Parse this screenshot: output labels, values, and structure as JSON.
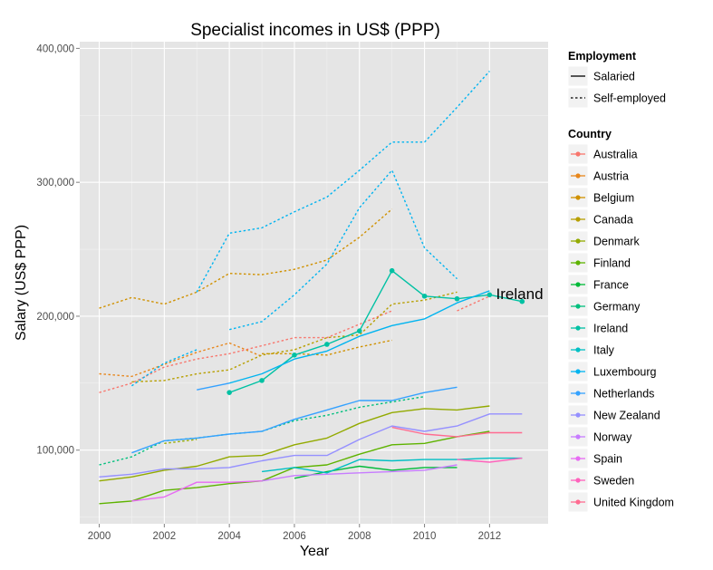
{
  "chart_data": {
    "type": "line",
    "title": "Specialist incomes in US$ (PPP)",
    "xlabel": "Year",
    "ylabel": "Salary (US$ PPP)",
    "xlim": [
      1999.4,
      2013.8
    ],
    "ylim": [
      45000,
      405000
    ],
    "x_ticks": [
      2000,
      2002,
      2004,
      2006,
      2008,
      2010,
      2012
    ],
    "y_ticks": [
      100000,
      200000,
      300000,
      400000
    ],
    "y_tick_labels": [
      "100,000",
      "200,000",
      "300,000",
      "400,000"
    ],
    "grid": true,
    "legend_position": "right",
    "legend": {
      "employment_title": "Employment",
      "employment": [
        {
          "label": "Salaried",
          "dash": "solid"
        },
        {
          "label": "Self-employed",
          "dash": "dotted"
        }
      ],
      "country_title": "Country",
      "countries": [
        {
          "name": "Australia",
          "color": "#F8766D"
        },
        {
          "name": "Austria",
          "color": "#E7861B"
        },
        {
          "name": "Belgium",
          "color": "#D09100"
        },
        {
          "name": "Canada",
          "color": "#B79F00"
        },
        {
          "name": "Denmark",
          "color": "#93AA00"
        },
        {
          "name": "Finland",
          "color": "#5EB300"
        },
        {
          "name": "France",
          "color": "#00BA38"
        },
        {
          "name": "Germany",
          "color": "#00BF7D"
        },
        {
          "name": "Ireland",
          "color": "#00C1A3"
        },
        {
          "name": "Italy",
          "color": "#00BFC4"
        },
        {
          "name": "Luxembourg",
          "color": "#00B4F0"
        },
        {
          "name": "Netherlands",
          "color": "#35A2FF"
        },
        {
          "name": "New Zealand",
          "color": "#9590FF"
        },
        {
          "name": "Norway",
          "color": "#C77CFF"
        },
        {
          "name": "Spain",
          "color": "#E76BF3"
        },
        {
          "name": "Sweden",
          "color": "#FF62BC"
        },
        {
          "name": "United Kingdom",
          "color": "#FF6C91"
        }
      ]
    },
    "annotations": [
      {
        "text": "Ireland",
        "x": 2012.2,
        "y": 217000
      }
    ],
    "series": [
      {
        "country": "Australia",
        "employment": "Self-employed",
        "color": "#F8766D",
        "dash": "dotted",
        "x": [
          2000,
          2001,
          2002,
          2003,
          2004,
          2005,
          2006,
          2007,
          2008,
          2009
        ],
        "y": [
          143000,
          150000,
          162000,
          168000,
          172000,
          178000,
          184000,
          184000,
          194000,
          204000
        ]
      },
      {
        "country": "Australia",
        "employment": "Self-employed",
        "color": "#F8766D",
        "dash": "dotted",
        "x": [
          2011,
          2012
        ],
        "y": [
          204000,
          215000
        ]
      },
      {
        "country": "Austria",
        "employment": "Self-employed",
        "color": "#E7861B",
        "dash": "dotted",
        "x": [
          2000,
          2001,
          2002,
          2003,
          2004,
          2005
        ],
        "y": [
          157000,
          155000,
          164000,
          173000,
          180000,
          170000
        ]
      },
      {
        "country": "Belgium",
        "employment": "Self-employed",
        "color": "#D09100",
        "dash": "dotted",
        "x": [
          2000,
          2001,
          2002,
          2003,
          2004,
          2005,
          2006,
          2007,
          2008,
          2009
        ],
        "y": [
          206000,
          214000,
          209000,
          218000,
          232000,
          231000,
          235000,
          242000,
          259000,
          280000
        ]
      },
      {
        "country": "Belgium",
        "employment": "Self-employed",
        "color": "#D09100",
        "dash": "dotted",
        "x": [
          2005,
          2006,
          2007,
          2008,
          2009
        ],
        "y": [
          172000,
          172000,
          171000,
          177000,
          182000
        ]
      },
      {
        "country": "Canada",
        "employment": "Self-employed",
        "color": "#B79F00",
        "dash": "dotted",
        "x": [
          2001,
          2002,
          2003,
          2004,
          2005,
          2006,
          2007,
          2008,
          2009,
          2010,
          2011
        ],
        "y": [
          151000,
          152000,
          157000,
          160000,
          171000,
          175000,
          184000,
          186000,
          209000,
          212000,
          218000
        ]
      },
      {
        "country": "Denmark",
        "employment": "Salaried",
        "color": "#93AA00",
        "dash": "solid",
        "x": [
          2000,
          2001,
          2002,
          2003,
          2004,
          2005,
          2006,
          2007,
          2008,
          2009,
          2010,
          2011,
          2012
        ],
        "y": [
          77000,
          80000,
          85000,
          88000,
          95000,
          96000,
          104000,
          109000,
          120000,
          128000,
          131000,
          130000,
          133000
        ]
      },
      {
        "country": "Denmark",
        "employment": "Self-employed",
        "color": "#93AA00",
        "dash": "dotted",
        "x": [
          2002,
          2003
        ],
        "y": [
          105000,
          108000
        ]
      },
      {
        "country": "Finland",
        "employment": "Salaried",
        "color": "#5EB300",
        "dash": "solid",
        "x": [
          2000,
          2001,
          2002,
          2003,
          2004,
          2005,
          2006,
          2007,
          2008,
          2009,
          2010,
          2011,
          2012
        ],
        "y": [
          60000,
          62000,
          70000,
          72000,
          75000,
          77000,
          87000,
          89000,
          97000,
          104000,
          105000,
          110000,
          114000
        ]
      },
      {
        "country": "France",
        "employment": "Salaried",
        "color": "#00BA38",
        "dash": "solid",
        "x": [
          2006,
          2007,
          2008,
          2009,
          2010,
          2011
        ],
        "y": [
          79000,
          84000,
          88000,
          85000,
          87000,
          87000
        ]
      },
      {
        "country": "Germany",
        "employment": "Self-employed",
        "color": "#00BF7D",
        "dash": "dotted",
        "x": [
          2000,
          2001,
          2002,
          2003,
          2004,
          2005,
          2006,
          2007,
          2008,
          2009,
          2010
        ],
        "y": [
          89000,
          95000,
          107000,
          109000,
          112000,
          114000,
          122000,
          126000,
          132000,
          136000,
          140000
        ]
      },
      {
        "country": "Ireland",
        "employment": "Salaried",
        "color": "#00C1A3",
        "dash": "solid",
        "points": true,
        "x": [
          2004,
          2005,
          2006,
          2007,
          2008,
          2009,
          2010,
          2011,
          2012,
          2013
        ],
        "y": [
          143000,
          152000,
          171000,
          179000,
          189000,
          234000,
          215000,
          213000,
          216000,
          211000
        ]
      },
      {
        "country": "Italy",
        "employment": "Salaried",
        "color": "#00BFC4",
        "dash": "solid",
        "x": [
          2005,
          2006,
          2007,
          2008,
          2009,
          2010,
          2011,
          2012,
          2013
        ],
        "y": [
          84000,
          87000,
          83000,
          93000,
          92000,
          93000,
          93000,
          94000,
          94000
        ]
      },
      {
        "country": "Luxembourg",
        "employment": "Self-employed",
        "color": "#00B4F0",
        "dash": "dotted",
        "x": [
          2003,
          2004,
          2005,
          2006,
          2007,
          2008,
          2009,
          2010,
          2011,
          2012
        ],
        "y": [
          218000,
          262000,
          266000,
          278000,
          289000,
          309000,
          330000,
          330000,
          356000,
          383000
        ]
      },
      {
        "country": "Luxembourg",
        "employment": "Self-employed",
        "color": "#00B4F0",
        "dash": "dotted",
        "x": [
          2004,
          2005,
          2006,
          2007,
          2008,
          2009,
          2010,
          2011
        ],
        "y": [
          190000,
          196000,
          216000,
          239000,
          281000,
          309000,
          251000,
          228000
        ]
      },
      {
        "country": "Luxembourg",
        "employment": "Self-employed",
        "color": "#00B4F0",
        "dash": "dotted",
        "x": [
          2001,
          2002,
          2003
        ],
        "y": [
          148000,
          165000,
          175000
        ]
      },
      {
        "country": "Luxembourg",
        "employment": "Salaried",
        "color": "#00B4F0",
        "dash": "solid",
        "x": [
          2004,
          2005,
          2006,
          2007,
          2008,
          2009,
          2010,
          2011,
          2012
        ],
        "y": [
          150000,
          157000,
          168000,
          174000,
          185000,
          193000,
          198000,
          210000,
          219000
        ]
      },
      {
        "country": "Netherlands",
        "employment": "Salaried",
        "color": "#35A2FF",
        "dash": "solid",
        "x": [
          2001,
          2002,
          2003,
          2004,
          2005,
          2006,
          2007,
          2008,
          2009,
          2010,
          2011
        ],
        "y": [
          98000,
          107000,
          109000,
          112000,
          114000,
          123000,
          130000,
          137000,
          137000,
          143000,
          147000
        ]
      },
      {
        "country": "Netherlands",
        "employment": "Salaried",
        "color": "#35A2FF",
        "dash": "solid",
        "x": [
          2003,
          2004
        ],
        "y": [
          145000,
          150000
        ]
      },
      {
        "country": "New Zealand",
        "employment": "Salaried",
        "color": "#9590FF",
        "dash": "solid",
        "x": [
          2000,
          2001,
          2002,
          2003,
          2004,
          2005,
          2006,
          2007,
          2008,
          2009,
          2010,
          2011,
          2012,
          2013
        ],
        "y": [
          80000,
          82000,
          86000,
          86000,
          87000,
          92000,
          96000,
          96000,
          108000,
          118000,
          114000,
          118000,
          127000,
          127000
        ]
      },
      {
        "country": "Norway",
        "employment": "Salaried",
        "color": "#C77CFF",
        "dash": "solid",
        "x": [
          2005,
          2006,
          2007,
          2008,
          2009,
          2010,
          2011
        ],
        "y": [
          77000,
          81000,
          82000,
          83000,
          84000,
          85000,
          89000
        ]
      },
      {
        "country": "Spain",
        "employment": "Salaried",
        "color": "#E76BF3",
        "dash": "solid",
        "x": [
          2001,
          2002,
          2003,
          2004,
          2005
        ],
        "y": [
          62000,
          65000,
          76000,
          76000,
          77000
        ]
      },
      {
        "country": "Sweden",
        "employment": "Salaried",
        "color": "#FF62BC",
        "dash": "solid",
        "x": [
          2011,
          2012,
          2013
        ],
        "y": [
          93000,
          91000,
          94000
        ]
      },
      {
        "country": "United Kingdom",
        "employment": "Salaried",
        "color": "#FF6C91",
        "dash": "solid",
        "x": [
          2009,
          2010,
          2011,
          2012,
          2013
        ],
        "y": [
          117000,
          112000,
          110000,
          113000,
          113000
        ]
      }
    ]
  }
}
